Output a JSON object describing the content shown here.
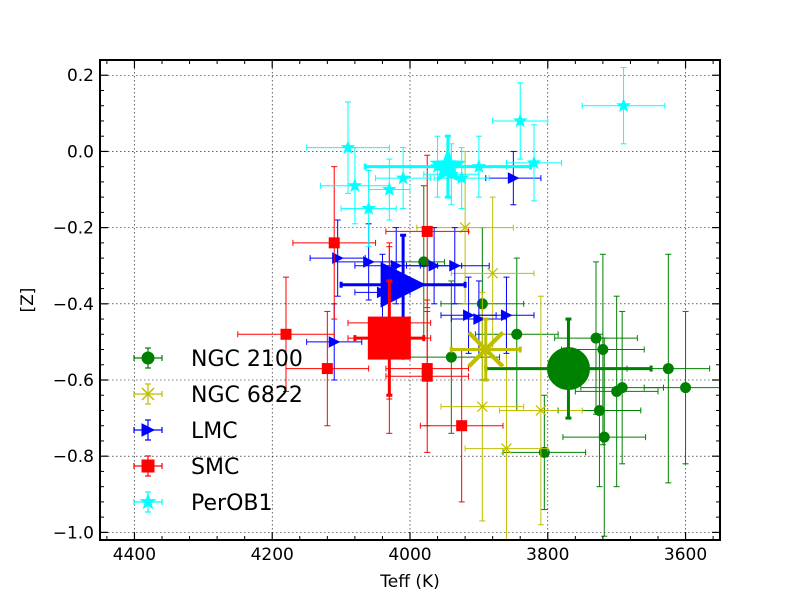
{
  "chart_data": {
    "type": "scatter",
    "xlabel": "Teff (K)",
    "ylabel": "[Z]",
    "xlim": [
      4450,
      3550
    ],
    "ylim": [
      -1.02,
      0.24
    ],
    "x_ticks": [
      4400,
      4200,
      4000,
      3800,
      3600
    ],
    "y_ticks": [
      0.2,
      0.0,
      -0.2,
      -0.4,
      -0.6,
      -0.8,
      -1.0
    ],
    "y_tick_labels": [
      "0.2",
      "0.0",
      "−0.2",
      "−0.4",
      "−0.6",
      "−0.8",
      "−1.0"
    ],
    "grid": true,
    "legend_position": "lower-left",
    "series": [
      {
        "name": "NGC 2100",
        "color": "#008000",
        "marker": "circle",
        "points": [
          {
            "x": 3980,
            "y": -0.29,
            "xerr": 30,
            "yerr": 0.2
          },
          {
            "x": 3940,
            "y": -0.54,
            "xerr": 70,
            "yerr": 0.2
          },
          {
            "x": 3895,
            "y": -0.4,
            "xerr": 60,
            "yerr": 0.2
          },
          {
            "x": 3845,
            "y": -0.48,
            "xerr": 60,
            "yerr": 0.2
          },
          {
            "x": 3805,
            "y": -0.79,
            "xerr": 60,
            "yerr": 0.15
          },
          {
            "x": 3730,
            "y": -0.49,
            "xerr": 60,
            "yerr": 0.2
          },
          {
            "x": 3720,
            "y": -0.52,
            "xerr": 60,
            "yerr": 0.25
          },
          {
            "x": 3725,
            "y": -0.68,
            "xerr": 60,
            "yerr": 0.2
          },
          {
            "x": 3718,
            "y": -0.75,
            "xerr": 60,
            "yerr": 0.26
          },
          {
            "x": 3700,
            "y": -0.63,
            "xerr": 60,
            "yerr": 0.25
          },
          {
            "x": 3692,
            "y": -0.62,
            "xerr": 60,
            "yerr": 0.2
          },
          {
            "x": 3625,
            "y": -0.57,
            "xerr": 60,
            "yerr": 0.3
          },
          {
            "x": 3600,
            "y": -0.62,
            "xerr": 60,
            "yerr": 0.2
          }
        ],
        "mean": {
          "x": 3770,
          "y": -0.57,
          "xerr": 120,
          "yerr": 0.13
        }
      },
      {
        "name": "NGC 6822",
        "color": "#bfbf00",
        "marker": "x",
        "points": [
          {
            "x": 3920,
            "y": -0.2,
            "xerr": 70,
            "yerr": 0.2
          },
          {
            "x": 3880,
            "y": -0.32,
            "xerr": 60,
            "yerr": 0.2
          },
          {
            "x": 3895,
            "y": -0.67,
            "xerr": 60,
            "yerr": 0.3
          },
          {
            "x": 3860,
            "y": -0.78,
            "xerr": 60,
            "yerr": 0.3
          },
          {
            "x": 3810,
            "y": -0.68,
            "xerr": 60,
            "yerr": 0.3
          }
        ],
        "mean": {
          "x": 3890,
          "y": -0.52,
          "xerr": 50,
          "yerr": 0.08
        }
      },
      {
        "name": "LMC",
        "color": "#0000ff",
        "marker": "triangle-right",
        "points": [
          {
            "x": 4105,
            "y": -0.28,
            "xerr": 40,
            "yerr": 0.1
          },
          {
            "x": 4060,
            "y": -0.29,
            "xerr": 50,
            "yerr": 0.1
          },
          {
            "x": 4040,
            "y": -0.37,
            "xerr": 40,
            "yerr": 0.1
          },
          {
            "x": 4020,
            "y": -0.3,
            "xerr": 60,
            "yerr": 0.1
          },
          {
            "x": 3965,
            "y": -0.3,
            "xerr": 40,
            "yerr": 0.1
          },
          {
            "x": 3935,
            "y": -0.3,
            "xerr": 50,
            "yerr": 0.1
          },
          {
            "x": 3915,
            "y": -0.43,
            "xerr": 40,
            "yerr": 0.1
          },
          {
            "x": 3900,
            "y": -0.44,
            "xerr": 40,
            "yerr": 0.1
          },
          {
            "x": 3860,
            "y": -0.43,
            "xerr": 40,
            "yerr": 0.1
          },
          {
            "x": 3850,
            "y": -0.07,
            "xerr": 40,
            "yerr": 0.07
          },
          {
            "x": 4110,
            "y": -0.5,
            "xerr": 40,
            "yerr": 0.1
          }
        ],
        "mean": {
          "x": 4010,
          "y": -0.35,
          "xerr": 90,
          "yerr": 0.13
        }
      },
      {
        "name": "SMC",
        "color": "#ff0000",
        "marker": "square",
        "points": [
          {
            "x": 4110,
            "y": -0.24,
            "xerr": 60,
            "yerr": 0.2
          },
          {
            "x": 3975,
            "y": -0.21,
            "xerr": 60,
            "yerr": 0.2
          },
          {
            "x": 4180,
            "y": -0.48,
            "xerr": 70,
            "yerr": 0.15
          },
          {
            "x": 4120,
            "y": -0.57,
            "xerr": 60,
            "yerr": 0.15
          },
          {
            "x": 4030,
            "y": -0.45,
            "xerr": 60,
            "yerr": 0.2
          },
          {
            "x": 4030,
            "y": -0.49,
            "xerr": 60,
            "yerr": 0.25
          },
          {
            "x": 3975,
            "y": -0.57,
            "xerr": 60,
            "yerr": 0.15
          },
          {
            "x": 3975,
            "y": -0.59,
            "xerr": 60,
            "yerr": 0.2
          },
          {
            "x": 3925,
            "y": -0.72,
            "xerr": 60,
            "yerr": 0.2
          }
        ],
        "mean": {
          "x": 4030,
          "y": -0.49,
          "xerr": 50,
          "yerr": 0.15
        }
      },
      {
        "name": "PerOB1",
        "color": "#00ffff",
        "marker": "star",
        "points": [
          {
            "x": 4090,
            "y": 0.01,
            "xerr": 60,
            "yerr": 0.12
          },
          {
            "x": 4080,
            "y": -0.09,
            "xerr": 50,
            "yerr": 0.1
          },
          {
            "x": 4060,
            "y": -0.15,
            "xerr": 40,
            "yerr": 0.1
          },
          {
            "x": 4030,
            "y": -0.1,
            "xerr": 30,
            "yerr": 0.08
          },
          {
            "x": 4010,
            "y": -0.07,
            "xerr": 40,
            "yerr": 0.08
          },
          {
            "x": 3960,
            "y": -0.04,
            "xerr": 40,
            "yerr": 0.08
          },
          {
            "x": 3940,
            "y": -0.06,
            "xerr": 40,
            "yerr": 0.08
          },
          {
            "x": 3925,
            "y": -0.07,
            "xerr": 40,
            "yerr": 0.08
          },
          {
            "x": 3900,
            "y": -0.04,
            "xerr": 40,
            "yerr": 0.08
          },
          {
            "x": 3840,
            "y": 0.08,
            "xerr": 40,
            "yerr": 0.1
          },
          {
            "x": 3820,
            "y": -0.03,
            "xerr": 40,
            "yerr": 0.1
          },
          {
            "x": 3690,
            "y": 0.12,
            "xerr": 60,
            "yerr": 0.1
          }
        ],
        "mean": {
          "x": 3945,
          "y": -0.04,
          "xerr": 120,
          "yerr": 0.08
        }
      }
    ]
  }
}
